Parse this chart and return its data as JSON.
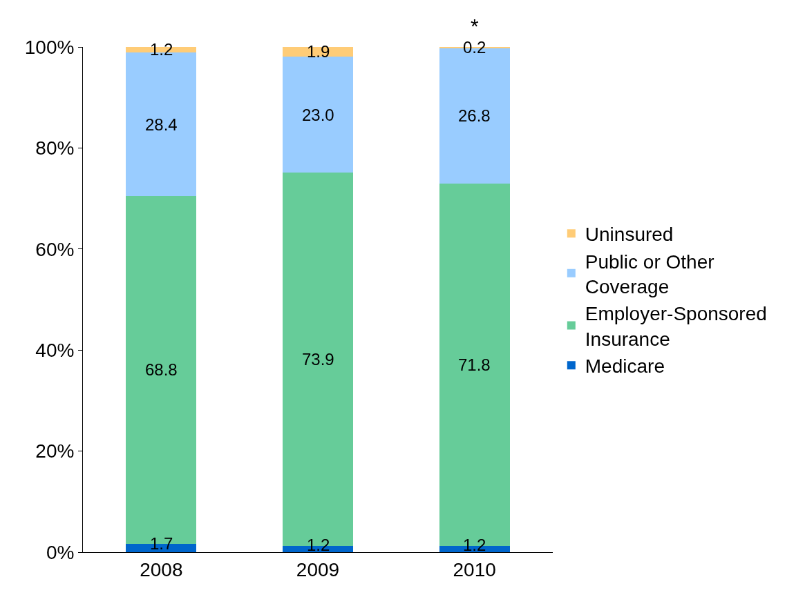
{
  "chart_data": {
    "type": "bar",
    "stacked": true,
    "categories": [
      "2008",
      "2009",
      "2010"
    ],
    "series": [
      {
        "name": "Medicare",
        "color": "#0066cc",
        "values": [
          1.7,
          1.2,
          1.2
        ],
        "value_labels": [
          "1.7",
          "1.2",
          "1.2"
        ]
      },
      {
        "name": "Employer-Sponsored Insurance",
        "color": "#66cc99",
        "values": [
          68.8,
          73.9,
          71.8
        ],
        "value_labels": [
          "68.8",
          "73.9",
          "71.8"
        ]
      },
      {
        "name": "Public or Other Coverage",
        "color": "#99ccff",
        "values": [
          28.4,
          23.0,
          26.8
        ],
        "value_labels": [
          "28.4",
          "23.0",
          "26.8"
        ]
      },
      {
        "name": "Uninsured",
        "color": "#ffcc77",
        "values": [
          1.2,
          1.9,
          0.2
        ],
        "value_labels": [
          "1.2",
          "1.9",
          "0.2"
        ]
      }
    ],
    "ylim": [
      0,
      100
    ],
    "yticks": [
      {
        "value": 0,
        "label": "0%"
      },
      {
        "value": 20,
        "label": "20%"
      },
      {
        "value": 40,
        "label": "40%"
      },
      {
        "value": 60,
        "label": "60%"
      },
      {
        "value": 80,
        "label": "80%"
      },
      {
        "value": 100,
        "label": "100%"
      }
    ],
    "annotations": [
      {
        "text": "*",
        "x": "2010",
        "y": 100
      }
    ],
    "legend": "right"
  }
}
